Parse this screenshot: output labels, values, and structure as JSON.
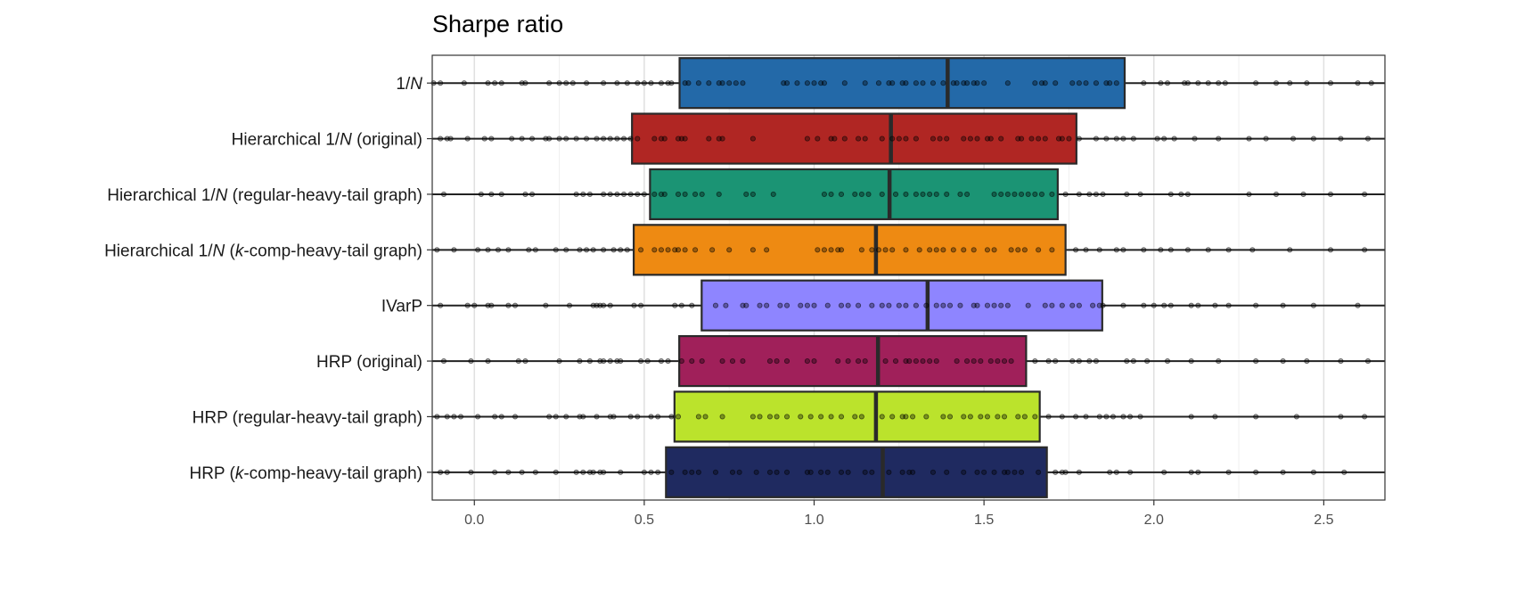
{
  "chart_data": {
    "type": "boxplot",
    "orientation": "horizontal",
    "title": "Sharpe ratio",
    "xlabel": "",
    "ylabel": "",
    "xlim": [
      -0.124,
      2.68
    ],
    "xticks": [
      0.0,
      0.5,
      1.0,
      1.5,
      2.0,
      2.5
    ],
    "xtick_labels": [
      "0.0",
      "0.5",
      "1.0",
      "1.5",
      "2.0",
      "2.5"
    ],
    "grid": true,
    "legend": "none",
    "whiskers": "extend beyond both plot edges",
    "series": [
      {
        "label": [
          "1/",
          "N",
          ""
        ],
        "color": "#2369A8",
        "q1": 0.604,
        "median": 1.393,
        "q3": 1.914,
        "points": [
          -0.12,
          -0.1,
          -0.03,
          0.04,
          0.06,
          0.08,
          0.14,
          0.15,
          0.22,
          0.25,
          0.27,
          0.29,
          0.33,
          0.38,
          0.42,
          0.45,
          0.48,
          0.5,
          0.52,
          0.55,
          0.57,
          0.58,
          0.62,
          0.63,
          0.66,
          0.69,
          0.72,
          0.73,
          0.75,
          0.77,
          0.79,
          0.91,
          0.92,
          0.95,
          0.98,
          1.0,
          1.02,
          1.03,
          1.09,
          1.15,
          1.19,
          1.22,
          1.23,
          1.26,
          1.27,
          1.3,
          1.32,
          1.35,
          1.38,
          1.41,
          1.42,
          1.44,
          1.45,
          1.47,
          1.48,
          1.5,
          1.57,
          1.65,
          1.67,
          1.68,
          1.71,
          1.76,
          1.78,
          1.8,
          1.83,
          1.86,
          1.87,
          1.89,
          1.97,
          2.02,
          2.04,
          2.09,
          2.1,
          2.13,
          2.16,
          2.19,
          2.21,
          2.3,
          2.36,
          2.4,
          2.45,
          2.52,
          2.6,
          2.64
        ]
      },
      {
        "label": [
          "Hierarchical 1/",
          "N",
          " (original)"
        ],
        "color": "#B02623",
        "q1": 0.464,
        "median": 1.226,
        "q3": 1.772,
        "points": [
          -0.1,
          -0.08,
          -0.07,
          -0.02,
          0.03,
          0.05,
          0.11,
          0.14,
          0.17,
          0.21,
          0.22,
          0.25,
          0.27,
          0.3,
          0.33,
          0.36,
          0.38,
          0.4,
          0.42,
          0.44,
          0.46,
          0.48,
          0.53,
          0.55,
          0.56,
          0.6,
          0.61,
          0.62,
          0.69,
          0.72,
          0.73,
          0.82,
          0.98,
          1.01,
          1.05,
          1.06,
          1.09,
          1.13,
          1.15,
          1.2,
          1.23,
          1.25,
          1.27,
          1.3,
          1.35,
          1.37,
          1.39,
          1.44,
          1.46,
          1.48,
          1.51,
          1.52,
          1.55,
          1.6,
          1.61,
          1.64,
          1.66,
          1.68,
          1.72,
          1.73,
          1.75,
          1.78,
          1.83,
          1.86,
          1.89,
          1.91,
          1.94,
          2.01,
          2.03,
          2.06,
          2.12,
          2.19,
          2.28,
          2.33,
          2.41,
          2.47,
          2.55,
          2.63
        ]
      },
      {
        "label": [
          "Hierarchical 1/",
          "N",
          " (regular-heavy-tail graph)"
        ],
        "color": "#1B9474",
        "q1": 0.517,
        "median": 1.222,
        "q3": 1.717,
        "points": [
          -0.09,
          0.02,
          0.05,
          0.08,
          0.15,
          0.17,
          0.3,
          0.32,
          0.34,
          0.38,
          0.4,
          0.42,
          0.44,
          0.46,
          0.48,
          0.5,
          0.53,
          0.55,
          0.56,
          0.6,
          0.62,
          0.65,
          0.67,
          0.72,
          0.8,
          0.82,
          0.88,
          1.03,
          1.05,
          1.08,
          1.12,
          1.14,
          1.16,
          1.2,
          1.24,
          1.27,
          1.3,
          1.32,
          1.34,
          1.36,
          1.39,
          1.43,
          1.45,
          1.53,
          1.55,
          1.57,
          1.59,
          1.61,
          1.63,
          1.65,
          1.67,
          1.7,
          1.74,
          1.78,
          1.81,
          1.83,
          1.85,
          1.92,
          1.96,
          2.05,
          2.08,
          2.1,
          2.28,
          2.36,
          2.44,
          2.52,
          2.62
        ]
      },
      {
        "label": [
          "Hierarchical 1/",
          "N",
          " (",
          "k",
          "-comp-heavy-tail graph)"
        ],
        "color": "#EE8A12",
        "q1": 0.469,
        "median": 1.182,
        "q3": 1.74,
        "points": [
          -0.11,
          -0.06,
          0.01,
          0.04,
          0.07,
          0.1,
          0.16,
          0.18,
          0.24,
          0.27,
          0.31,
          0.33,
          0.35,
          0.38,
          0.41,
          0.43,
          0.45,
          0.49,
          0.53,
          0.55,
          0.57,
          0.59,
          0.6,
          0.62,
          0.65,
          0.7,
          0.75,
          0.82,
          0.86,
          1.01,
          1.03,
          1.05,
          1.07,
          1.08,
          1.14,
          1.17,
          1.19,
          1.21,
          1.23,
          1.27,
          1.31,
          1.34,
          1.36,
          1.38,
          1.41,
          1.44,
          1.47,
          1.51,
          1.53,
          1.58,
          1.6,
          1.62,
          1.66,
          1.7,
          1.77,
          1.8,
          1.84,
          1.89,
          1.91,
          1.97,
          2.02,
          2.05,
          2.1,
          2.16,
          2.22,
          2.29,
          2.4,
          2.52,
          2.62
        ]
      },
      {
        "label": [
          "IVarP"
        ],
        "color": "#8E85FF",
        "q1": 0.669,
        "median": 1.334,
        "q3": 1.848,
        "points": [
          -0.1,
          -0.02,
          0.0,
          0.04,
          0.05,
          0.1,
          0.12,
          0.21,
          0.28,
          0.35,
          0.36,
          0.37,
          0.38,
          0.4,
          0.47,
          0.49,
          0.59,
          0.61,
          0.64,
          0.71,
          0.74,
          0.79,
          0.8,
          0.84,
          0.86,
          0.9,
          0.92,
          0.96,
          0.98,
          1.0,
          1.04,
          1.08,
          1.1,
          1.13,
          1.17,
          1.2,
          1.22,
          1.25,
          1.27,
          1.3,
          1.33,
          1.36,
          1.38,
          1.4,
          1.43,
          1.47,
          1.48,
          1.51,
          1.53,
          1.55,
          1.57,
          1.63,
          1.68,
          1.7,
          1.73,
          1.76,
          1.78,
          1.82,
          1.84,
          1.85,
          1.91,
          1.97,
          2.0,
          2.03,
          2.05,
          2.11,
          2.13,
          2.18,
          2.22,
          2.3,
          2.38,
          2.47,
          2.6
        ]
      },
      {
        "label": [
          "HRP (original)"
        ],
        "color": "#A0205A",
        "q1": 0.603,
        "median": 1.188,
        "q3": 1.624,
        "points": [
          -0.09,
          -0.01,
          0.04,
          0.13,
          0.15,
          0.25,
          0.31,
          0.34,
          0.37,
          0.38,
          0.4,
          0.42,
          0.43,
          0.49,
          0.51,
          0.55,
          0.57,
          0.61,
          0.64,
          0.67,
          0.73,
          0.76,
          0.79,
          0.87,
          0.89,
          0.92,
          0.98,
          1.0,
          1.07,
          1.1,
          1.13,
          1.15,
          1.21,
          1.24,
          1.27,
          1.28,
          1.3,
          1.32,
          1.34,
          1.36,
          1.42,
          1.45,
          1.47,
          1.49,
          1.52,
          1.54,
          1.56,
          1.58,
          1.65,
          1.69,
          1.71,
          1.76,
          1.78,
          1.81,
          1.83,
          1.92,
          1.94,
          1.98,
          2.04,
          2.11,
          2.19,
          2.3,
          2.38,
          2.45,
          2.55,
          2.63
        ]
      },
      {
        "label": [
          "HRP (regular-heavy-tail graph)"
        ],
        "color": "#BBE32C",
        "q1": 0.589,
        "median": 1.182,
        "q3": 1.664,
        "points": [
          -0.11,
          -0.08,
          -0.06,
          -0.04,
          0.01,
          0.06,
          0.08,
          0.12,
          0.22,
          0.24,
          0.27,
          0.31,
          0.32,
          0.36,
          0.4,
          0.41,
          0.46,
          0.48,
          0.52,
          0.54,
          0.58,
          0.6,
          0.66,
          0.68,
          0.73,
          0.82,
          0.84,
          0.87,
          0.89,
          0.92,
          0.96,
          0.99,
          1.02,
          1.05,
          1.08,
          1.12,
          1.14,
          1.2,
          1.23,
          1.26,
          1.27,
          1.29,
          1.33,
          1.38,
          1.4,
          1.44,
          1.46,
          1.49,
          1.51,
          1.54,
          1.56,
          1.6,
          1.62,
          1.65,
          1.69,
          1.73,
          1.77,
          1.8,
          1.84,
          1.86,
          1.88,
          1.91,
          1.93,
          1.96,
          2.11,
          2.18,
          2.3,
          2.42,
          2.55,
          2.62
        ]
      },
      {
        "label": [
          "HRP (",
          "k",
          "-comp-heavy-tail graph)"
        ],
        "color": "#1F2A60",
        "q1": 0.564,
        "median": 1.202,
        "q3": 1.685,
        "points": [
          -0.1,
          -0.08,
          -0.01,
          0.06,
          0.1,
          0.14,
          0.18,
          0.24,
          0.3,
          0.32,
          0.34,
          0.35,
          0.37,
          0.38,
          0.43,
          0.5,
          0.52,
          0.54,
          0.58,
          0.62,
          0.64,
          0.66,
          0.71,
          0.76,
          0.78,
          0.83,
          0.87,
          0.89,
          0.92,
          0.98,
          0.99,
          1.02,
          1.04,
          1.08,
          1.1,
          1.15,
          1.17,
          1.22,
          1.26,
          1.28,
          1.29,
          1.35,
          1.39,
          1.44,
          1.48,
          1.5,
          1.53,
          1.56,
          1.57,
          1.59,
          1.61,
          1.66,
          1.71,
          1.73,
          1.74,
          1.78,
          1.87,
          1.89,
          1.93,
          2.03,
          2.11,
          2.13,
          2.22,
          2.3,
          2.38,
          2.47,
          2.56
        ]
      }
    ]
  }
}
